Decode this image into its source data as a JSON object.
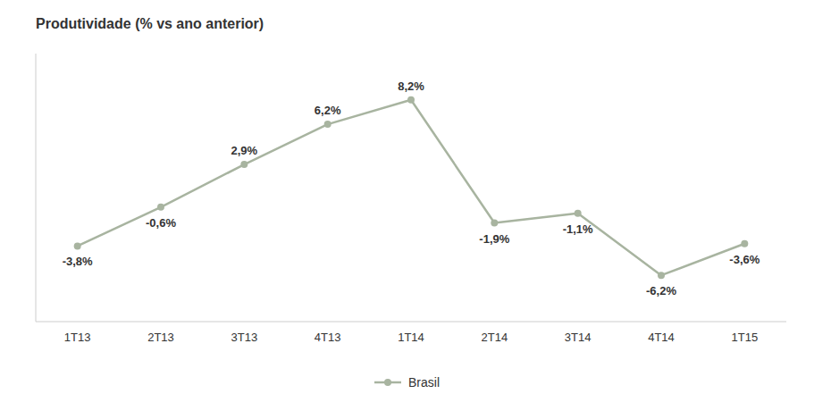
{
  "chart_data": {
    "type": "line",
    "title": "Produtividade (% vs ano anterior)",
    "categories": [
      "1T13",
      "2T13",
      "3T13",
      "4T13",
      "1T14",
      "2T14",
      "3T14",
      "4T14",
      "1T15"
    ],
    "series": [
      {
        "name": "Brasil",
        "color": "#a8b4a0",
        "marker": "circle",
        "values": [
          -3.8,
          -0.6,
          2.9,
          6.2,
          8.2,
          -1.9,
          -1.1,
          -6.2,
          -3.6
        ],
        "value_labels": [
          "-3,8%",
          "-0,6%",
          "2,9%",
          "6,2%",
          "8,2%",
          "-1,9%",
          "-1,1%",
          "-6,2%",
          "-3,6%"
        ]
      }
    ],
    "ylim": [
      -10,
      12
    ],
    "tick_labels": "x",
    "data_labels": true,
    "grid": false,
    "legend": "bottom"
  }
}
